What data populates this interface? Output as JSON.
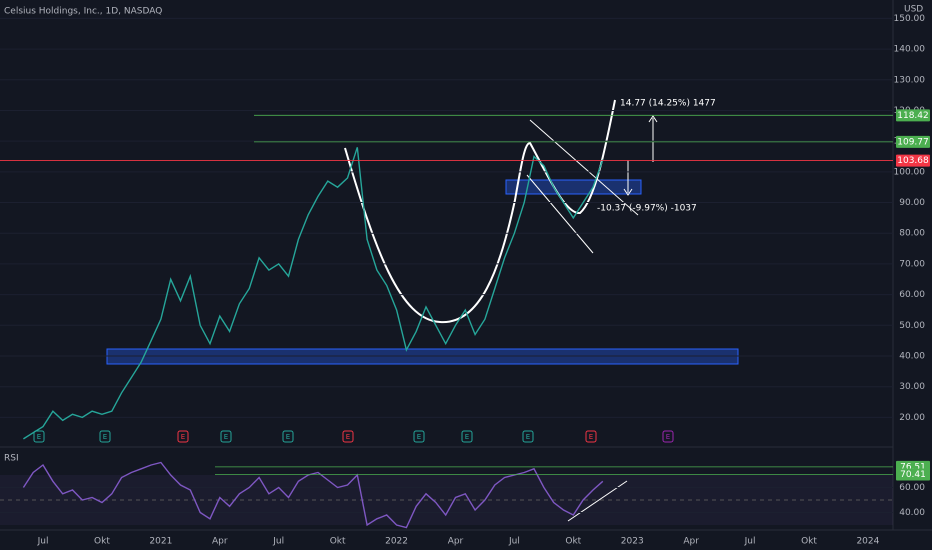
{
  "title": "Celsius Holdings, Inc., 1D, NASDAQ",
  "currency": "USD",
  "chart_data": [
    {
      "type": "line",
      "color": "#26a69a",
      "categories": [
        null,
        null,
        "Jul",
        null,
        null,
        null,
        null,
        null,
        "Okt",
        null,
        null,
        null,
        null,
        null,
        "2021",
        null,
        null,
        null,
        null,
        null,
        "Apr",
        null,
        null,
        null,
        null,
        null,
        "Jul",
        null,
        null,
        null,
        null,
        null,
        "Okt",
        null,
        null,
        null,
        null,
        null,
        "2022",
        null,
        null,
        null,
        null,
        null,
        "Apr",
        null,
        null,
        null,
        null,
        null,
        "Jul",
        null,
        null,
        null,
        null,
        null,
        "Okt",
        null,
        null,
        null,
        null,
        null,
        "2023",
        null,
        null,
        null,
        null,
        null,
        "Apr",
        null,
        null,
        null,
        null,
        null,
        "Jul",
        null,
        null,
        null,
        null,
        null,
        "Okt",
        null,
        null,
        null,
        null,
        null,
        "2024"
      ],
      "values": [
        13,
        15,
        17,
        22,
        19,
        21,
        20,
        22,
        21,
        22,
        28,
        33,
        38,
        45,
        52,
        65,
        58,
        66,
        50,
        44,
        53,
        48,
        57,
        62,
        72,
        68,
        70,
        66,
        78,
        86,
        92,
        97,
        95,
        98,
        108,
        78,
        68,
        63,
        55,
        42,
        48,
        56,
        50,
        44,
        50,
        55,
        47,
        52,
        62,
        72,
        80,
        90,
        105,
        102,
        95,
        90,
        85,
        90,
        95,
        104,
        null,
        null,
        null,
        null,
        null,
        null,
        null,
        null,
        null,
        null,
        null,
        null,
        null,
        null,
        null,
        null,
        null,
        null,
        null,
        null,
        null,
        null,
        null,
        null,
        null,
        null,
        null
      ],
      "ylim": [
        11,
        156
      ],
      "yticks": [
        {
          "value": 20,
          "label": "20.00"
        },
        {
          "value": 30,
          "label": "30.00"
        },
        {
          "value": 40,
          "label": "40.00"
        },
        {
          "value": 50,
          "label": "50.00"
        },
        {
          "value": 60,
          "label": "60.00"
        },
        {
          "value": 70,
          "label": "70.00"
        },
        {
          "value": 80,
          "label": "80.00"
        },
        {
          "value": 90,
          "label": "90.00"
        },
        {
          "value": 100,
          "label": "100.00"
        },
        {
          "value": 110,
          "label": "110.00"
        },
        {
          "value": 120,
          "label": "120.00"
        },
        {
          "value": 130,
          "label": "130.00"
        },
        {
          "value": 140,
          "label": "140.00"
        },
        {
          "value": 150,
          "label": "150.00"
        }
      ],
      "hlines": [
        {
          "value": 118.42,
          "color": "#4caf50"
        },
        {
          "value": 109.77,
          "color": "#4caf50"
        },
        {
          "value": 103.68,
          "color": "#f23645"
        }
      ],
      "annotations": [
        "14.77 (14.25%) 1477",
        "-10.37 (-9.97%) -1037"
      ],
      "earnings": [
        {
          "label": "E",
          "color": "#26a69a"
        },
        {
          "label": "E",
          "color": "#26a69a"
        },
        {
          "label": "E",
          "color": "#f23645"
        },
        {
          "label": "E",
          "color": "#26a69a"
        },
        {
          "label": "E",
          "color": "#26a69a"
        },
        {
          "label": "E",
          "color": "#f23645"
        },
        {
          "label": "E",
          "color": "#26a69a"
        },
        {
          "label": "E",
          "color": "#26a69a"
        },
        {
          "label": "E",
          "color": "#26a69a"
        },
        {
          "label": "E",
          "color": "#f23645"
        },
        {
          "label": "E",
          "color": "#9c27b0"
        }
      ]
    },
    {
      "type": "line",
      "title": "RSI",
      "color": "#7e57c2",
      "values": [
        60,
        72,
        78,
        65,
        55,
        58,
        50,
        52,
        48,
        55,
        68,
        72,
        75,
        78,
        80,
        70,
        62,
        58,
        40,
        35,
        52,
        45,
        55,
        60,
        68,
        55,
        60,
        52,
        65,
        70,
        72,
        66,
        60,
        62,
        70,
        30,
        35,
        38,
        30,
        28,
        45,
        55,
        48,
        38,
        52,
        55,
        42,
        50,
        62,
        68,
        70,
        72,
        75,
        60,
        48,
        42,
        38,
        50,
        58,
        65,
        null,
        null,
        null,
        null,
        null,
        null,
        null,
        null,
        null,
        null,
        null,
        null,
        null,
        null,
        null,
        null,
        null,
        null,
        null,
        null,
        null,
        null,
        null,
        null,
        null,
        null,
        null
      ],
      "ylim": [
        26,
        90
      ],
      "yticks": [
        {
          "value": 40,
          "label": "40.00"
        },
        {
          "value": 60,
          "label": "60.00"
        }
      ],
      "hlines": [
        {
          "value": 76.51,
          "color": "#4caf50"
        },
        {
          "value": 70.41,
          "color": "#4caf50"
        }
      ]
    }
  ]
}
